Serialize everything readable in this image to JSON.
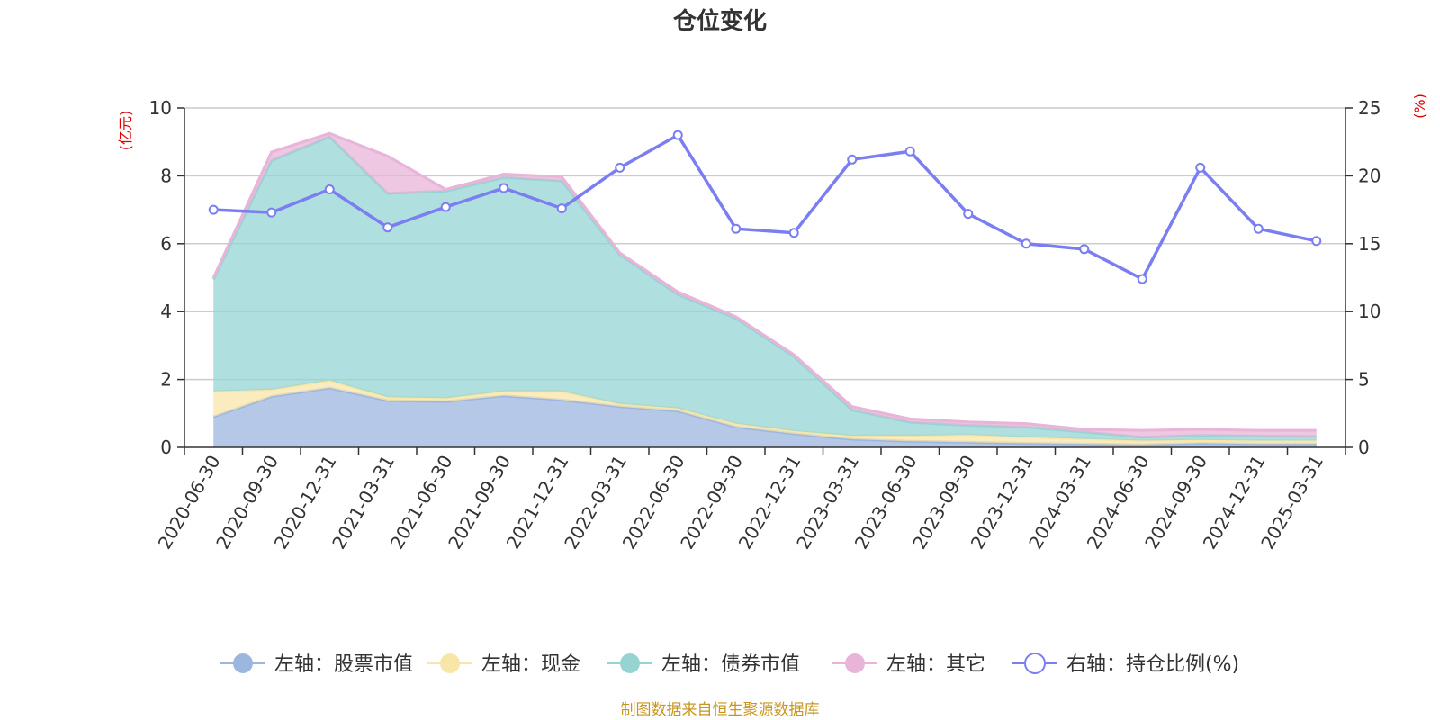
{
  "chart_data": {
    "type": "area",
    "title": "仓位变化",
    "left_axis_unit": "(亿元)",
    "right_axis_unit": "(%)",
    "left_ylim": [
      0,
      10
    ],
    "left_yticks": [
      0,
      2,
      4,
      6,
      8,
      10
    ],
    "right_ylim": [
      0,
      25
    ],
    "right_yticks": [
      0,
      5,
      10,
      15,
      20,
      25
    ],
    "grid": true,
    "legend_position": "bottom-center",
    "categories": [
      "2020-06-30",
      "2020-09-30",
      "2020-12-31",
      "2021-03-31",
      "2021-06-30",
      "2021-09-30",
      "2021-12-31",
      "2022-03-31",
      "2022-06-30",
      "2022-09-30",
      "2022-12-31",
      "2023-03-31",
      "2023-06-30",
      "2023-09-30",
      "2023-12-31",
      "2024-03-31",
      "2024-06-30",
      "2024-09-30",
      "2024-12-31",
      "2025-03-31"
    ],
    "stacked_series": [
      {
        "name": "左轴：股票市值",
        "color": "#9db6e0",
        "values": [
          0.9,
          1.5,
          1.75,
          1.38,
          1.35,
          1.52,
          1.4,
          1.2,
          1.07,
          0.6,
          0.4,
          0.24,
          0.18,
          0.15,
          0.12,
          0.1,
          0.08,
          0.12,
          0.1,
          0.1
        ]
      },
      {
        "name": "左轴：现金",
        "color": "#f8e6a8",
        "values": [
          0.75,
          0.2,
          0.22,
          0.1,
          0.1,
          0.13,
          0.25,
          0.08,
          0.08,
          0.1,
          0.08,
          0.1,
          0.16,
          0.22,
          0.18,
          0.15,
          0.12,
          0.1,
          0.1,
          0.1
        ]
      },
      {
        "name": "左轴：债券市值",
        "color": "#96d4d4",
        "values": [
          3.3,
          6.75,
          7.18,
          6.0,
          6.1,
          6.3,
          6.2,
          4.4,
          3.35,
          3.1,
          2.2,
          0.76,
          0.4,
          0.28,
          0.3,
          0.2,
          0.1,
          0.13,
          0.13,
          0.12
        ]
      },
      {
        "name": "左轴：其它",
        "color": "#e8b4d8",
        "values": [
          0.05,
          0.25,
          0.1,
          1.1,
          0.05,
          0.1,
          0.12,
          0.05,
          0.08,
          0.05,
          0.05,
          0.1,
          0.1,
          0.1,
          0.1,
          0.08,
          0.2,
          0.18,
          0.17,
          0.18
        ]
      }
    ],
    "line_series": {
      "name": "右轴：持仓比例(%)",
      "color": "#7a7ef0",
      "values": [
        17.5,
        17.3,
        19.0,
        16.2,
        17.7,
        19.1,
        17.6,
        20.6,
        23.0,
        16.1,
        15.8,
        21.2,
        21.8,
        17.2,
        15.0,
        14.6,
        12.4,
        20.6,
        16.1,
        15.2
      ]
    }
  },
  "source_text": "制图数据来自恒生聚源数据库"
}
